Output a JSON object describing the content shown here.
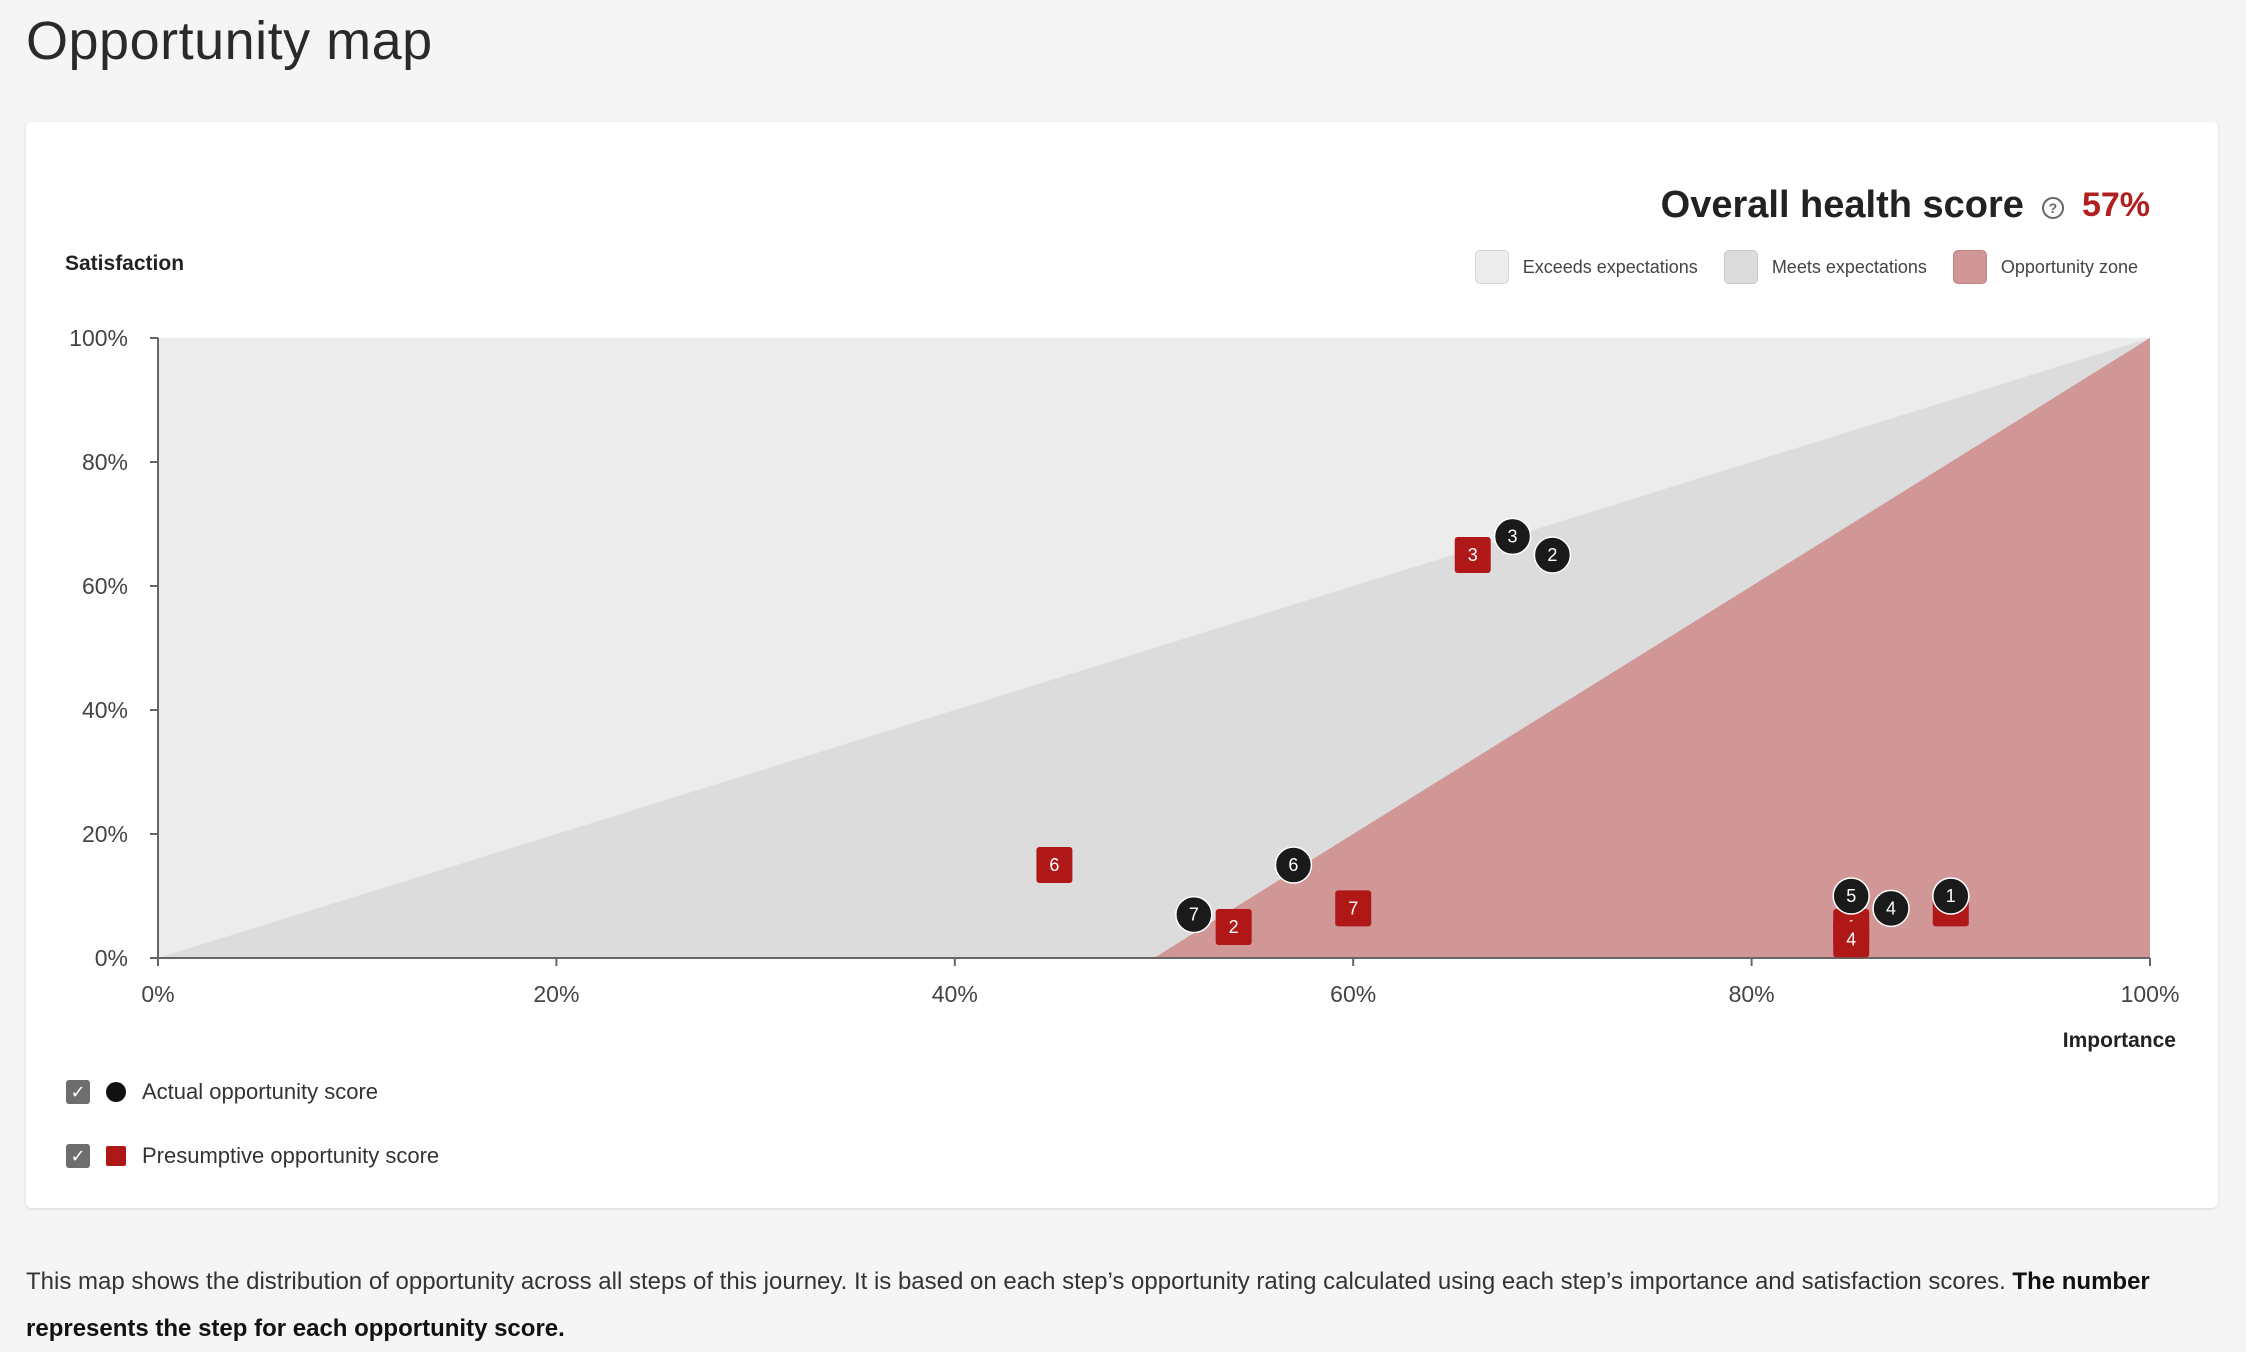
{
  "page": {
    "title": "Opportunity map",
    "description_text": "This map shows the distribution of opportunity across all steps of this journey. It is based on each step’s opportunity rating calculated using each step’s importance and satisfaction scores.",
    "description_bold": "The number represents the step for each opportunity score."
  },
  "health": {
    "label": "Overall health score",
    "value": "57%",
    "value_color": "#b02020",
    "help_icon": "question-circle-icon"
  },
  "zones": [
    {
      "label": "Exceeds expectations",
      "color": "#ececec"
    },
    {
      "label": "Meets expectations",
      "color": "#dcdcdc"
    },
    {
      "label": "Opportunity zone",
      "color": "#d19696"
    }
  ],
  "series_legend": [
    {
      "label": "Actual opportunity score",
      "checked": true,
      "marker": "circle",
      "color": "#111111"
    },
    {
      "label": "Presumptive opportunity score",
      "checked": true,
      "marker": "square",
      "color": "#b01818"
    }
  ],
  "chart_data": {
    "type": "scatter",
    "xlabel": "Importance",
    "ylabel": "Satisfaction",
    "xlim": [
      0,
      100
    ],
    "ylim": [
      0,
      100
    ],
    "x_ticks": [
      "0%",
      "20%",
      "40%",
      "60%",
      "80%",
      "100%"
    ],
    "y_ticks": [
      "0%",
      "20%",
      "40%",
      "60%",
      "80%",
      "100%"
    ],
    "grid": false,
    "legend_position": "top-right",
    "series": [
      {
        "name": "Actual opportunity score",
        "marker": "circle",
        "color": "#1a1a1a",
        "points": [
          {
            "label": "1",
            "x": 90,
            "y": 10
          },
          {
            "label": "2",
            "x": 70,
            "y": 65
          },
          {
            "label": "3",
            "x": 68,
            "y": 68
          },
          {
            "label": "4",
            "x": 87,
            "y": 8
          },
          {
            "label": "5",
            "x": 85,
            "y": 10
          },
          {
            "label": "6",
            "x": 57,
            "y": 15
          },
          {
            "label": "7",
            "x": 52,
            "y": 7
          }
        ]
      },
      {
        "name": "Presumptive opportunity score",
        "marker": "square",
        "color": "#b01818",
        "points": [
          {
            "label": "1",
            "x": 85,
            "y": 5
          },
          {
            "label": "2",
            "x": 54,
            "y": 5
          },
          {
            "label": "3",
            "x": 66,
            "y": 65
          },
          {
            "label": "4",
            "x": 85,
            "y": 3
          },
          {
            "label": "5",
            "x": 90,
            "y": 8
          },
          {
            "label": "6",
            "x": 45,
            "y": 15
          },
          {
            "label": "7",
            "x": 60,
            "y": 8
          }
        ]
      }
    ]
  }
}
